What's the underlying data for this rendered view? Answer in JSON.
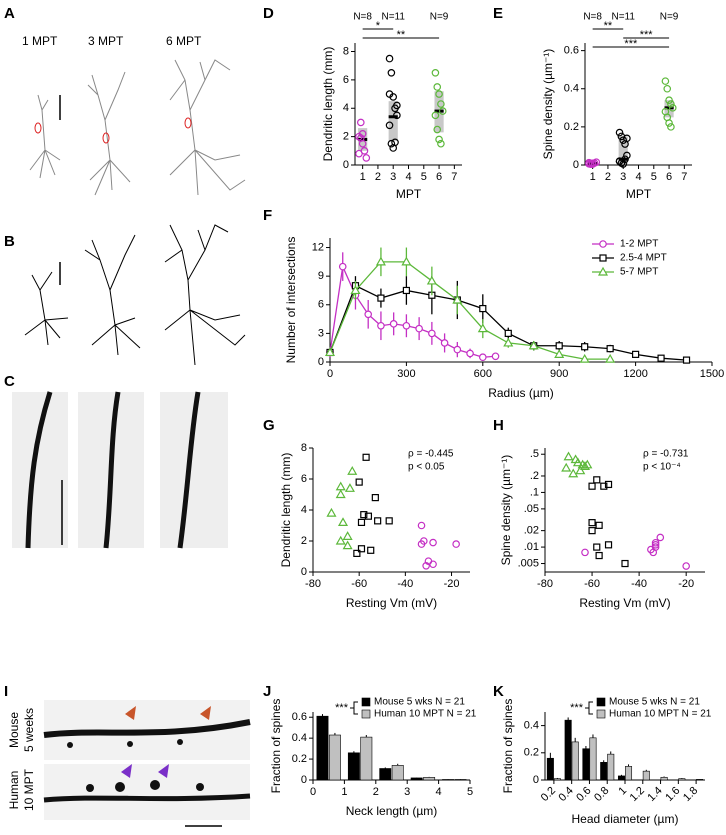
{
  "figure_panels": {
    "A": {
      "label": "A",
      "captions": [
        "1 MPT",
        "3 MPT",
        "6 MPT"
      ]
    },
    "B": {
      "label": "B"
    },
    "C": {
      "label": "C"
    },
    "I": {
      "label": "I",
      "rows": [
        {
          "species": "Mouse",
          "age": "5 weeks"
        },
        {
          "species": "Human",
          "age": "10 MPT"
        }
      ]
    }
  },
  "chart_data": [
    {
      "type": "strip",
      "panel": "D",
      "ylabel": "Dendritic length (mm)",
      "xlabel": "MPT",
      "xlim": [
        0.5,
        7.5
      ],
      "xticks": [
        1,
        2,
        3,
        4,
        5,
        6,
        7
      ],
      "ylim": [
        0,
        8.6
      ],
      "yticks": [
        0,
        2,
        4,
        6,
        8
      ],
      "groups": [
        {
          "x": 1,
          "label": "N=8",
          "color": "#c42fc4",
          "values": [
            2.0,
            1.9,
            1.5,
            1.0,
            0.5,
            0.8,
            3.0,
            2.2
          ],
          "median": 1.8,
          "box": [
            1.0,
            2.6
          ]
        },
        {
          "x": 3,
          "label": "N=11",
          "color": "#000000",
          "values": [
            7.5,
            6.5,
            4.8,
            4.0,
            3.5,
            2.8,
            1.5,
            1.2,
            1.6,
            4.2,
            5.0
          ],
          "median": 3.4,
          "box": [
            1.7,
            4.5
          ]
        },
        {
          "x": 6,
          "label": "N=9",
          "color": "#5cb83a",
          "values": [
            6.5,
            5.5,
            5.0,
            4.3,
            3.8,
            3.5,
            2.5,
            1.8,
            1.5
          ],
          "median": 3.8,
          "box": [
            2.3,
            5.2
          ]
        }
      ],
      "significance": [
        {
          "text": "*",
          "from": 1,
          "to": 3
        },
        {
          "text": "**",
          "from": 1,
          "to": 6
        }
      ]
    },
    {
      "type": "strip",
      "panel": "E",
      "ylabel": "Spine density (µm⁻¹)",
      "xlabel": "MPT",
      "xlim": [
        0.5,
        7.5
      ],
      "xticks": [
        1,
        2,
        3,
        4,
        5,
        6,
        7
      ],
      "ylim": [
        0,
        0.64
      ],
      "yticks": [
        0,
        0.2,
        0.4,
        0.6
      ],
      "groups": [
        {
          "x": 1,
          "label": "N=8",
          "color": "#c42fc4",
          "values": [
            0.012,
            0.008,
            0.005,
            0.01,
            0.015,
            0.006,
            0.004,
            0.009
          ],
          "median": 0.008,
          "box": [
            0.005,
            0.012
          ]
        },
        {
          "x": 3,
          "label": "N=11",
          "color": "#000000",
          "values": [
            0.17,
            0.15,
            0.13,
            0.11,
            0.05,
            0.02,
            0.01,
            0.005,
            0.03,
            0.14,
            0.02
          ],
          "median": 0.03,
          "box": [
            0.005,
            0.15
          ]
        },
        {
          "x": 6,
          "label": "N=9",
          "color": "#5cb83a",
          "values": [
            0.44,
            0.4,
            0.34,
            0.32,
            0.3,
            0.28,
            0.25,
            0.22,
            0.2
          ],
          "median": 0.3,
          "box": [
            0.25,
            0.34
          ]
        }
      ],
      "significance": [
        {
          "text": "**",
          "from": 1,
          "to": 3
        },
        {
          "text": "***",
          "from": 3,
          "to": 6
        },
        {
          "text": "***",
          "from": 1,
          "to": 6
        }
      ]
    },
    {
      "type": "line",
      "panel": "F",
      "ylabel": "Number of intersections",
      "xlabel": "Radius (µm)",
      "xlim": [
        0,
        1500
      ],
      "xticks": [
        0,
        300,
        600,
        900,
        1200,
        1500
      ],
      "ylim": [
        0,
        13
      ],
      "yticks": [
        0,
        3,
        6,
        9,
        12
      ],
      "legend": "upper right",
      "series": [
        {
          "name": "1-2 MPT",
          "color": "#c42fc4",
          "marker": "o",
          "x": [
            0,
            50,
            100,
            150,
            200,
            250,
            300,
            350,
            400,
            450,
            500,
            550,
            600,
            650
          ],
          "values": [
            1,
            10,
            7,
            5,
            3.8,
            4,
            3.8,
            3.5,
            3,
            2,
            1.3,
            0.9,
            0.5,
            0.6
          ],
          "errors": [
            0.5,
            1.5,
            1.5,
            1.5,
            1.5,
            1.2,
            1.2,
            1.2,
            1.2,
            1,
            0.8,
            0.5,
            0.3,
            0.3
          ]
        },
        {
          "name": "2.5-4 MPT",
          "color": "#000000",
          "marker": "s",
          "x": [
            0,
            100,
            200,
            300,
            400,
            500,
            600,
            700,
            800,
            900,
            1000,
            1100,
            1200,
            1300,
            1400
          ],
          "values": [
            1,
            8,
            6.7,
            7.5,
            7,
            6.5,
            5.6,
            3,
            1.7,
            1.7,
            1.6,
            1.4,
            0.8,
            0.4,
            0.2
          ],
          "errors": [
            0.3,
            1,
            1,
            1.5,
            2,
            2,
            1.5,
            0.6,
            0.5,
            0.5,
            0.5,
            0.4,
            0.3,
            0.2,
            0.1
          ]
        },
        {
          "name": "5-7 MPT",
          "color": "#5cb83a",
          "marker": "^",
          "x": [
            0,
            100,
            200,
            300,
            400,
            500,
            600,
            700,
            800,
            900,
            1000,
            1100
          ],
          "values": [
            1,
            7.5,
            10.5,
            10.5,
            8.5,
            6.5,
            3.5,
            2,
            1.7,
            0.8,
            0.3,
            0.3
          ],
          "errors": [
            0.3,
            1,
            1.5,
            1.5,
            1.5,
            1.5,
            1,
            0.5,
            0.5,
            0.3,
            0.2,
            0.1
          ]
        }
      ]
    },
    {
      "type": "scatter",
      "panel": "G",
      "ylabel": "Dendritic length (mm)",
      "xlabel": "Resting Vm (mV)",
      "xlim": [
        -80,
        -12
      ],
      "xticks": [
        -80,
        -60,
        -40,
        -20
      ],
      "ylim": [
        0,
        8
      ],
      "yticks": [
        0,
        2,
        4,
        6,
        8
      ],
      "annotations": [
        "ρ = -0.445",
        "p < 0.05"
      ],
      "series": [
        {
          "color": "#5cb83a",
          "marker": "^",
          "x": [
            -72,
            -68,
            -68,
            -67,
            -68,
            -65,
            -65,
            -63,
            -64
          ],
          "values": [
            3.8,
            5.5,
            5.0,
            3.2,
            2.0,
            1.7,
            2.3,
            6.5,
            5.4
          ]
        },
        {
          "color": "#000000",
          "marker": "s",
          "x": [
            -57,
            -60,
            -53,
            -58,
            -59,
            -59,
            -61,
            -55,
            -52,
            -47,
            -56
          ],
          "values": [
            7.4,
            5.8,
            4.8,
            3.7,
            3.2,
            1.5,
            1.2,
            1.4,
            3.3,
            3.3,
            3.6
          ]
        },
        {
          "color": "#c42fc4",
          "marker": "o",
          "x": [
            -33,
            -33,
            -30,
            -31,
            -28,
            -28,
            -18,
            -32
          ],
          "values": [
            3.0,
            1.8,
            0.7,
            0.4,
            0.5,
            1.9,
            1.8,
            2.0
          ]
        }
      ]
    },
    {
      "type": "scatter",
      "panel": "H",
      "ylabel": "Spine density (µm⁻¹)",
      "xlabel": "Resting Vm (mV)",
      "xlim": [
        -80,
        -12
      ],
      "xticks": [
        -80,
        -60,
        -40,
        -20
      ],
      "ylog": true,
      "ylim": [
        0.0035,
        0.65
      ],
      "yticks": [
        {
          "value": 0.005,
          "label": ".005"
        },
        {
          "value": 0.01,
          "label": ".01"
        },
        {
          "value": 0.02,
          "label": ".02"
        },
        {
          "value": 0.05,
          "label": ".05"
        },
        {
          "value": 0.1,
          "label": ".1"
        },
        {
          "value": 0.2,
          "label": ".2"
        },
        {
          "value": 0.5,
          "label": ".5"
        }
      ],
      "annotations": [
        "ρ = -0.731",
        "p < 10⁻⁴"
      ],
      "series": [
        {
          "color": "#5cb83a",
          "marker": "^",
          "x": [
            -70,
            -67,
            -66,
            -64,
            -68,
            -65,
            -63,
            -71,
            -62
          ],
          "values": [
            0.45,
            0.4,
            0.35,
            0.32,
            0.22,
            0.25,
            0.3,
            0.28,
            0.32
          ]
        },
        {
          "color": "#000000",
          "marker": "s",
          "x": [
            -58,
            -60,
            -55,
            -53,
            -60,
            -57,
            -58,
            -53,
            -46,
            -60,
            -57
          ],
          "values": [
            0.17,
            0.13,
            0.13,
            0.14,
            0.028,
            0.025,
            0.01,
            0.011,
            0.005,
            0.02,
            0.007
          ]
        },
        {
          "color": "#c42fc4",
          "marker": "o",
          "x": [
            -31,
            -33,
            -33,
            -34,
            -20,
            -63,
            -35,
            -33
          ],
          "values": [
            0.015,
            0.011,
            0.01,
            0.008,
            0.0045,
            0.008,
            0.009,
            0.012
          ]
        }
      ]
    },
    {
      "type": "bar",
      "panel": "J",
      "ylabel": "Fraction of spines",
      "xlabel": "Neck length (µm)",
      "xlim": [
        0,
        5
      ],
      "xticks": [
        0,
        1,
        2,
        3,
        4,
        5
      ],
      "ylim": [
        0,
        0.65
      ],
      "yticks": [
        0,
        0.2,
        0.4,
        0.6
      ],
      "legend": "upper right",
      "legend_note": "***",
      "x": [
        0.5,
        1.5,
        2.5,
        3.5,
        4.5
      ],
      "series": [
        {
          "name": "Mouse 5 wks N = 21",
          "color": "#000000",
          "values": [
            0.61,
            0.26,
            0.11,
            0.02,
            0.005
          ],
          "errors": [
            0.02,
            0.015,
            0.01,
            0.003,
            0.002
          ]
        },
        {
          "name": "Human 10 MPT N = 21",
          "color": "#c0c0c0",
          "values": [
            0.43,
            0.41,
            0.14,
            0.025,
            0.005
          ],
          "errors": [
            0.02,
            0.02,
            0.015,
            0.005,
            0.002
          ]
        }
      ]
    },
    {
      "type": "bar",
      "panel": "K",
      "ylabel": "Fraction of spines",
      "xlabel": "Head diameter (µm)",
      "xlim": [
        0.1,
        1.9
      ],
      "xticks": [
        0.2,
        0.4,
        0.6,
        0.8,
        1,
        1.2,
        1.4,
        1.6,
        1.8
      ],
      "xtick_rotation": 45,
      "ylim": [
        0,
        0.5
      ],
      "yticks": [
        0,
        0.2,
        0.4
      ],
      "legend": "upper right",
      "legend_note": "***",
      "x": [
        0.2,
        0.4,
        0.6,
        0.8,
        1,
        1.2,
        1.4,
        1.6,
        1.8
      ],
      "series": [
        {
          "name": "Mouse 5 wks N = 21",
          "color": "#000000",
          "values": [
            0.16,
            0.44,
            0.23,
            0.13,
            0.03,
            0,
            0,
            0,
            0
          ],
          "errors": [
            0.04,
            0.02,
            0.02,
            0.015,
            0.008,
            0,
            0,
            0,
            0
          ]
        },
        {
          "name": "Human 10 MPT N = 21",
          "color": "#c0c0c0",
          "values": [
            0.01,
            0.28,
            0.31,
            0.19,
            0.1,
            0.065,
            0.02,
            0.01,
            0.005
          ],
          "errors": [
            0.005,
            0.03,
            0.025,
            0.02,
            0.015,
            0.01,
            0.006,
            0.004,
            0.002
          ]
        }
      ]
    }
  ]
}
